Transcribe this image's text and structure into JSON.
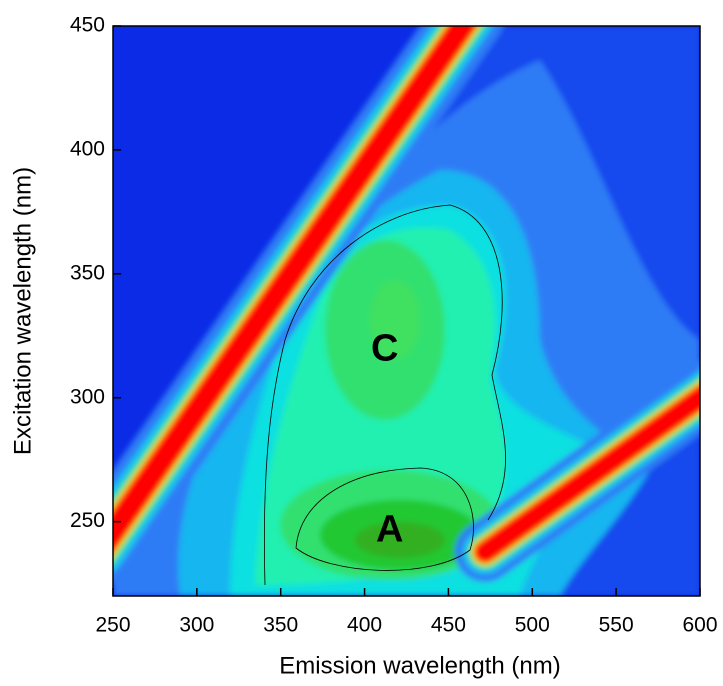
{
  "chart_data": {
    "type": "contour",
    "x_label": "Emission wavelength (nm)",
    "y_label": "Excitation wavelength (nm)",
    "xlim": [
      250,
      600
    ],
    "ylim": [
      220,
      450
    ],
    "xticks": [
      250,
      300,
      350,
      400,
      450,
      500,
      550,
      600
    ],
    "yticks": [
      250,
      300,
      350,
      400,
      450
    ],
    "annotations": [
      {
        "text": "C",
        "x": 412,
        "y": 319
      },
      {
        "text": "A",
        "x": 415,
        "y": 246
      }
    ]
  }
}
